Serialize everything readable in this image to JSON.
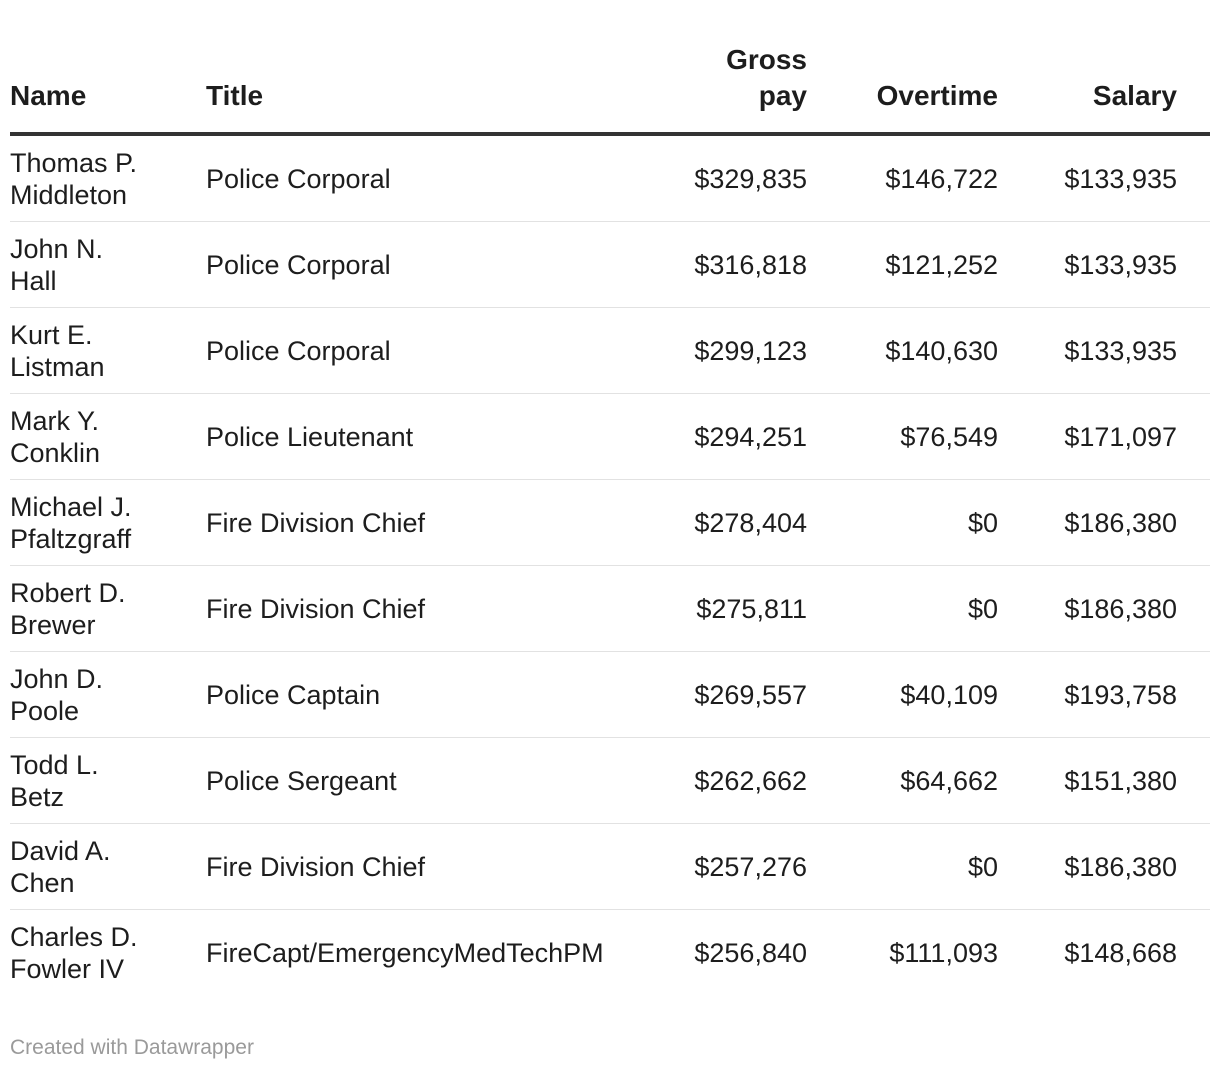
{
  "chart_data": {
    "type": "table",
    "columns": [
      {
        "key": "name",
        "label": [
          "Name"
        ]
      },
      {
        "key": "title",
        "label": [
          "Title"
        ]
      },
      {
        "key": "gross_pay",
        "label": [
          "Gross",
          "pay"
        ]
      },
      {
        "key": "overtime",
        "label": [
          "Overtime"
        ]
      },
      {
        "key": "salary",
        "label": [
          "Salary"
        ]
      }
    ],
    "rows": [
      {
        "name": [
          "Thomas P.",
          "Middleton"
        ],
        "title": "Police Corporal",
        "gross_pay": "$329,835",
        "overtime": "$146,722",
        "salary": "$133,935"
      },
      {
        "name": [
          "John N.",
          "Hall"
        ],
        "title": "Police Corporal",
        "gross_pay": "$316,818",
        "overtime": "$121,252",
        "salary": "$133,935"
      },
      {
        "name": [
          "Kurt E.",
          "Listman"
        ],
        "title": "Police Corporal",
        "gross_pay": "$299,123",
        "overtime": "$140,630",
        "salary": "$133,935"
      },
      {
        "name": [
          "Mark Y.",
          "Conklin"
        ],
        "title": "Police Lieutenant",
        "gross_pay": "$294,251",
        "overtime": "$76,549",
        "salary": "$171,097"
      },
      {
        "name": [
          "Michael J.",
          "Pfaltzgraff"
        ],
        "title": "Fire Division Chief",
        "gross_pay": "$278,404",
        "overtime": "$0",
        "salary": "$186,380"
      },
      {
        "name": [
          "Robert D.",
          "Brewer"
        ],
        "title": "Fire Division Chief",
        "gross_pay": "$275,811",
        "overtime": "$0",
        "salary": "$186,380"
      },
      {
        "name": [
          "John D.",
          "Poole"
        ],
        "title": "Police Captain",
        "gross_pay": "$269,557",
        "overtime": "$40,109",
        "salary": "$193,758"
      },
      {
        "name": [
          "Todd L.",
          "Betz"
        ],
        "title": "Police Sergeant",
        "gross_pay": "$262,662",
        "overtime": "$64,662",
        "salary": "$151,380"
      },
      {
        "name": [
          "David A.",
          "Chen"
        ],
        "title": "Fire Division Chief",
        "gross_pay": "$257,276",
        "overtime": "$0",
        "salary": "$186,380"
      },
      {
        "name": [
          "Charles D.",
          "Fowler IV"
        ],
        "title": "FireCapt/EmergencyMedTechPM",
        "gross_pay": "$256,840",
        "overtime": "$111,093",
        "salary": "$148,668"
      }
    ]
  },
  "footer": {
    "credit": "Created with Datawrapper"
  }
}
